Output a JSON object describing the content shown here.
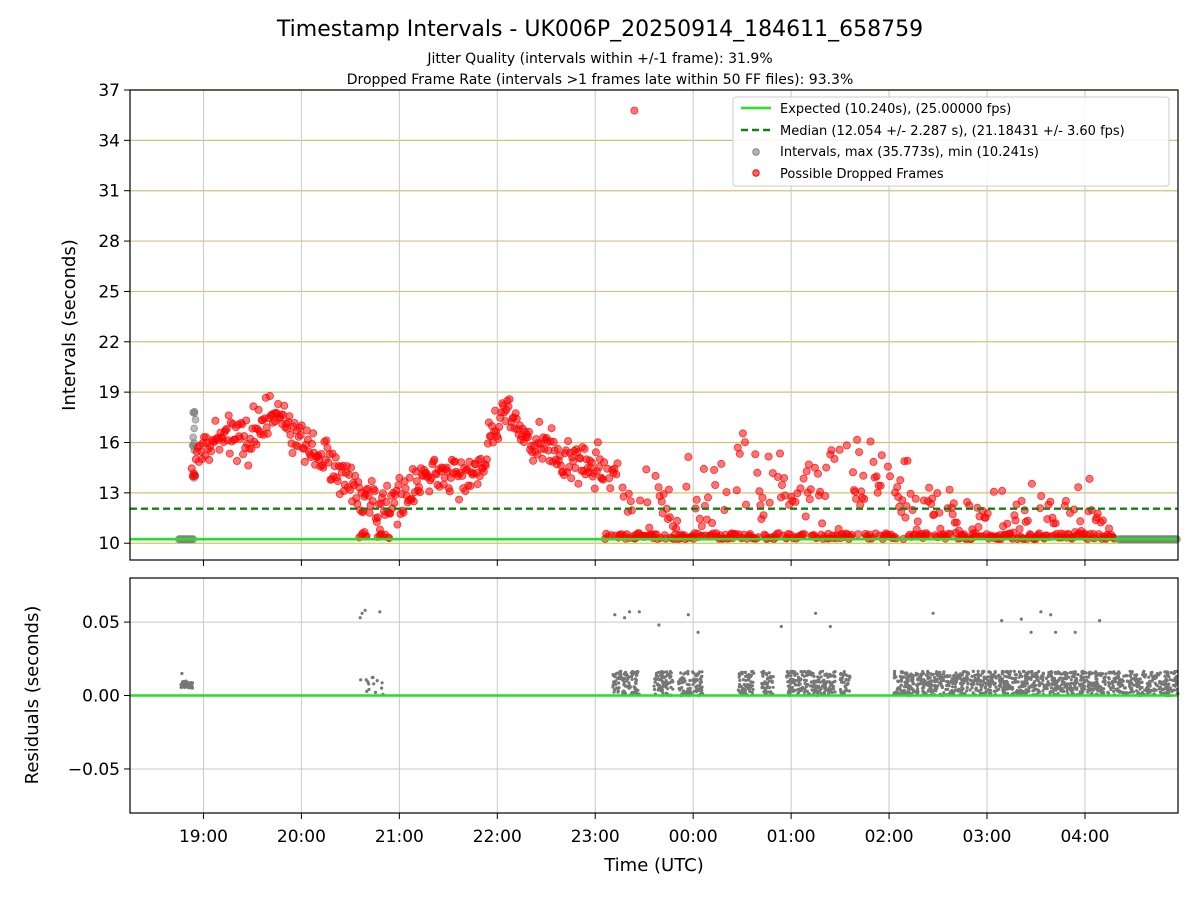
{
  "title": "Timestamp Intervals - UK006P_20250914_184611_658759",
  "subtitle_1": "Jitter Quality (intervals within +/-1 frame): 31.9%",
  "subtitle_2": "Dropped Frame Rate (intervals >1 frames late within 50 FF files): 93.3%",
  "colors": {
    "expected": "#22e322",
    "median": "#138013",
    "dropped": "#ff0000",
    "intervals": "#808080",
    "residuals": "#777777",
    "hgrid_top": "#d4c07a",
    "grid": "#c8c8c8"
  },
  "chart_data": [
    {
      "type": "scatter",
      "panel": "intervals",
      "xlabel": "",
      "ylabel": "Intervals (seconds)",
      "x_unit": "hours since 19:00 UTC (23:59 = 5.0, 04:00 = 9.0)",
      "ylim": [
        9.0,
        37.0
      ],
      "yticks": [
        "10",
        "13",
        "16",
        "19",
        "22",
        "25",
        "28",
        "31",
        "34",
        "37"
      ],
      "ytick_values": [
        10,
        13,
        16,
        19,
        22,
        25,
        28,
        31,
        34,
        37
      ],
      "grid": true,
      "legend_position": "top-right",
      "legend": [
        "Expected (10.240s), (25.00000 fps)",
        "Median (12.054 +/- 2.287 s), (21.18431 +/- 3.60 fps)",
        "Intervals, max (35.773s), min (10.241s)",
        "Possible Dropped Frames"
      ],
      "expected_value": 10.24,
      "median_value": 12.054,
      "max_interval": 35.773,
      "min_interval": 10.241,
      "outlier_point": [
        4.4,
        35.773
      ],
      "regular_interval_cluster": {
        "x_range": [
          -0.25,
          -0.1
        ],
        "y": 10.241
      },
      "trend": [
        [
          -0.15,
          14.0
        ],
        [
          0.0,
          15.5
        ],
        [
          0.2,
          16.3
        ],
        [
          0.5,
          16.2
        ],
        [
          0.75,
          18.0
        ],
        [
          1.0,
          15.8
        ],
        [
          1.3,
          14.6
        ],
        [
          1.6,
          12.6
        ],
        [
          1.9,
          12.0
        ],
        [
          2.2,
          13.7
        ],
        [
          2.5,
          14.0
        ],
        [
          2.8,
          14.3
        ],
        [
          3.05,
          18.0
        ],
        [
          3.3,
          16.4
        ],
        [
          3.6,
          15.0
        ],
        [
          3.9,
          14.5
        ],
        [
          4.1,
          14.4
        ],
        [
          4.4,
          12.5
        ],
        [
          4.7,
          12.4
        ],
        [
          5.1,
          12.0
        ],
        [
          5.5,
          13.4
        ],
        [
          6.0,
          13.0
        ],
        [
          6.5,
          13.0
        ],
        [
          6.8,
          13.3
        ],
        [
          7.2,
          12.0
        ],
        [
          7.6,
          11.6
        ],
        [
          8.0,
          11.4
        ],
        [
          8.5,
          11.3
        ],
        [
          9.0,
          11.2
        ],
        [
          9.3,
          11.0
        ]
      ]
    },
    {
      "type": "scatter",
      "panel": "residuals",
      "xlabel": "Time (UTC)",
      "ylabel": "Residuals (seconds)",
      "ylim": [
        -0.08,
        0.08
      ],
      "yticks": [
        "−0.05",
        "0.00",
        "0.05"
      ],
      "ytick_values": [
        -0.05,
        0.0,
        0.05
      ],
      "xlim": [
        -0.75,
        9.95
      ],
      "xticks": [
        "19:00",
        "20:00",
        "21:00",
        "22:00",
        "23:00",
        "00:00",
        "01:00",
        "02:00",
        "03:00",
        "04:00"
      ],
      "xtick_values": [
        0,
        1,
        2,
        3,
        4,
        5,
        6,
        7,
        8,
        9
      ],
      "grid": true,
      "high_points": [
        [
          1.6,
          0.053
        ],
        [
          1.62,
          0.056
        ],
        [
          1.65,
          0.058
        ],
        [
          1.8,
          0.057
        ],
        [
          4.2,
          0.055
        ],
        [
          4.3,
          0.053
        ],
        [
          4.35,
          0.057
        ],
        [
          4.45,
          0.057
        ],
        [
          4.65,
          0.048
        ],
        [
          4.95,
          0.055
        ],
        [
          5.05,
          0.043
        ],
        [
          5.9,
          0.047
        ],
        [
          6.25,
          0.056
        ],
        [
          6.4,
          0.047
        ],
        [
          7.45,
          0.056
        ],
        [
          8.15,
          0.051
        ],
        [
          8.35,
          0.052
        ],
        [
          8.45,
          0.043
        ],
        [
          8.55,
          0.057
        ],
        [
          8.65,
          0.055
        ],
        [
          8.7,
          0.043
        ],
        [
          8.9,
          0.043
        ],
        [
          9.15,
          0.051
        ]
      ]
    }
  ]
}
